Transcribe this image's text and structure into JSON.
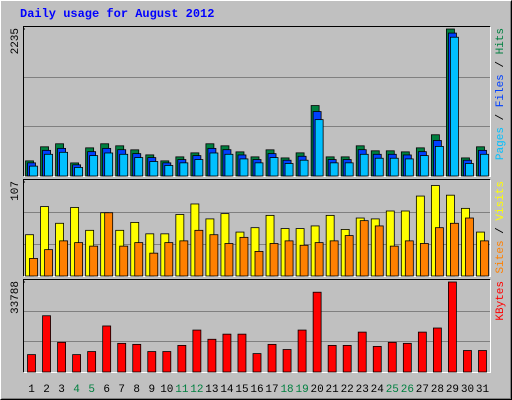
{
  "chart_data": [
    {
      "type": "bar",
      "title": "Daily usage for August 2012",
      "ylim": [
        0,
        2235
      ],
      "yticks": [
        2235
      ],
      "grid": true,
      "series": [
        {
          "name": "Hits",
          "color": "#008040",
          "values": [
            230,
            444,
            490,
            199,
            428,
            490,
            459,
            398,
            321,
            230,
            291,
            352,
            490,
            459,
            367,
            291,
            398,
            275,
            352,
            1071,
            291,
            291,
            459,
            383,
            383,
            367,
            428,
            627,
            2235,
            275,
            444
          ]
        },
        {
          "name": "Files",
          "color": "#0040ff",
          "values": [
            200,
            390,
            420,
            170,
            370,
            420,
            400,
            340,
            280,
            200,
            250,
            310,
            420,
            400,
            320,
            250,
            340,
            240,
            300,
            980,
            250,
            250,
            400,
            330,
            330,
            320,
            370,
            540,
            2173,
            240,
            390
          ]
        },
        {
          "name": "Pages",
          "color": "#00c0ff",
          "values": [
            150,
            330,
            360,
            130,
            310,
            350,
            330,
            280,
            220,
            160,
            200,
            250,
            350,
            330,
            260,
            200,
            280,
            190,
            240,
            857,
            200,
            200,
            330,
            270,
            270,
            260,
            310,
            450,
            2110,
            190,
            330
          ]
        }
      ]
    },
    {
      "type": "bar",
      "ylim": [
        0,
        107
      ],
      "yticks": [
        107
      ],
      "grid": true,
      "series": [
        {
          "name": "Visits",
          "color": "#ffff00",
          "values": [
            47,
            79,
            60,
            78,
            52,
            72,
            52,
            61,
            48,
            48,
            70,
            82,
            65,
            71,
            50,
            55,
            69,
            54,
            54,
            57,
            69,
            53,
            66,
            65,
            74,
            74,
            91,
            103,
            92,
            77,
            50
          ]
        },
        {
          "name": "Sites",
          "color": "#ff8000",
          "values": [
            20,
            30,
            40,
            38,
            34,
            72,
            34,
            38,
            26,
            38,
            40,
            52,
            47,
            37,
            44,
            28,
            37,
            40,
            35,
            38,
            40,
            46,
            63,
            57,
            34,
            40,
            37,
            55,
            60,
            66,
            40
          ]
        }
      ]
    },
    {
      "type": "bar",
      "ylim": [
        0,
        33788
      ],
      "yticks": [
        33788
      ],
      "grid": true,
      "categories": [
        "1",
        "2",
        "3",
        "4",
        "5",
        "6",
        "7",
        "8",
        "9",
        "10",
        "11",
        "12",
        "13",
        "14",
        "15",
        "16",
        "17",
        "18",
        "19",
        "20",
        "21",
        "22",
        "23",
        "24",
        "25",
        "26",
        "27",
        "28",
        "29",
        "30",
        "31"
      ],
      "category_colors": [
        "#000000",
        "#000000",
        "#000000",
        "#008040",
        "#008040",
        "#000000",
        "#000000",
        "#000000",
        "#000000",
        "#000000",
        "#008040",
        "#008040",
        "#000000",
        "#000000",
        "#000000",
        "#000000",
        "#000000",
        "#008040",
        "#008040",
        "#000000",
        "#000000",
        "#000000",
        "#000000",
        "#000000",
        "#008040",
        "#008040",
        "#000000",
        "#000000",
        "#000000",
        "#000000",
        "#000000"
      ],
      "series": [
        {
          "name": "KBytes",
          "color": "#ff0000",
          "values": [
            6528,
            21120,
            11136,
            6528,
            7680,
            17280,
            10752,
            10368,
            7680,
            7680,
            9984,
            15744,
            12288,
            14208,
            14208,
            6912,
            10368,
            8448,
            15744,
            29952,
            9984,
            9984,
            14976,
            9600,
            11136,
            10752,
            14976,
            16512,
            33788,
            8064,
            8064
          ]
        }
      ]
    }
  ]
}
